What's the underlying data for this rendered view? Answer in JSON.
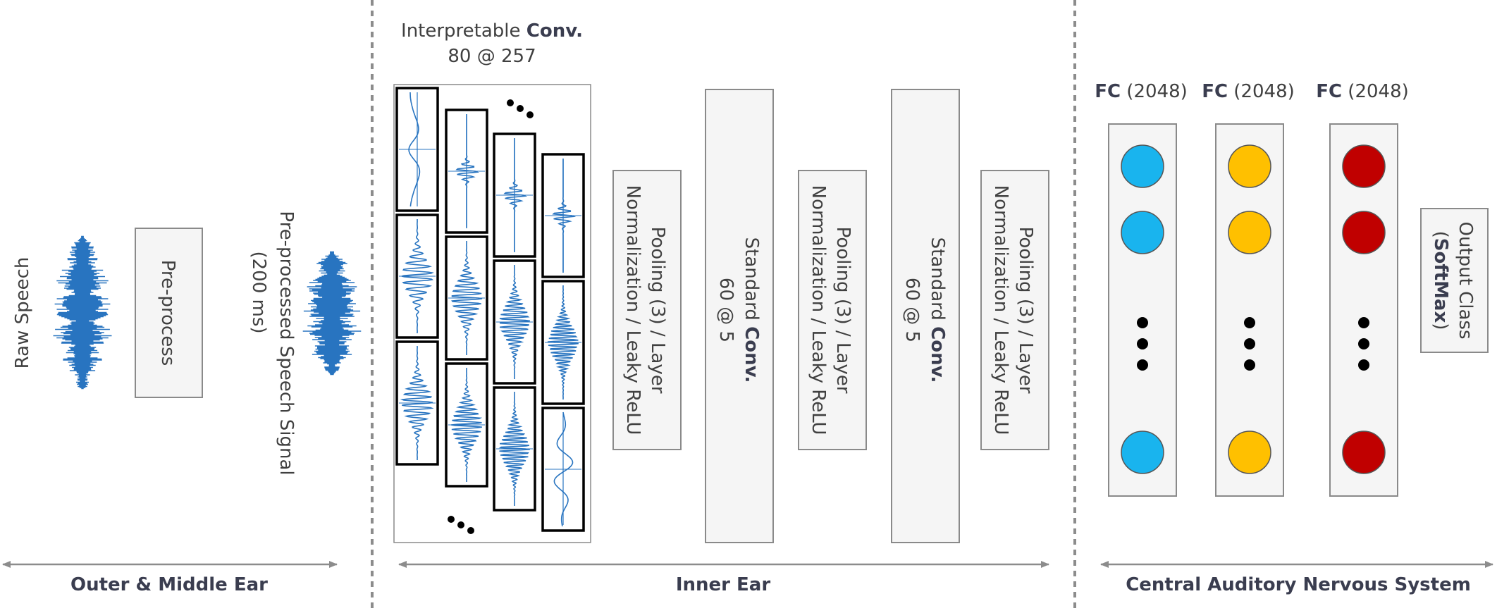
{
  "regions": {
    "outer": "Outer & Middle Ear",
    "inner": "Inner Ear",
    "central": "Central Auditory Nervous System"
  },
  "raw_speech": "Raw Speech",
  "preprocess": "Pre-process",
  "preprocessed": {
    "line1": "Pre-processed Speech Signal",
    "line2": "(200 ms)"
  },
  "interp_conv": {
    "prefix": "Interpretable ",
    "bold": "Conv.",
    "dims": "80 @ 257"
  },
  "pooling": {
    "line1": "Pooling (3) / Layer",
    "line2": "Normalization / Leaky ReLU"
  },
  "std_conv": {
    "prefix": "Standard ",
    "bold": "Conv.",
    "dims": "60 @ 5"
  },
  "fc_layers": [
    {
      "bold": "FC",
      "rest": " (2048)",
      "color": "#19b4ee"
    },
    {
      "bold": "FC",
      "rest": " (2048)",
      "color": "#ffc000"
    },
    {
      "bold": "FC",
      "rest": " (2048)",
      "color": "#c00000"
    }
  ],
  "output": {
    "line1": "Output Class",
    "open": "(",
    "bold": "SoftMax",
    "close": ")"
  }
}
